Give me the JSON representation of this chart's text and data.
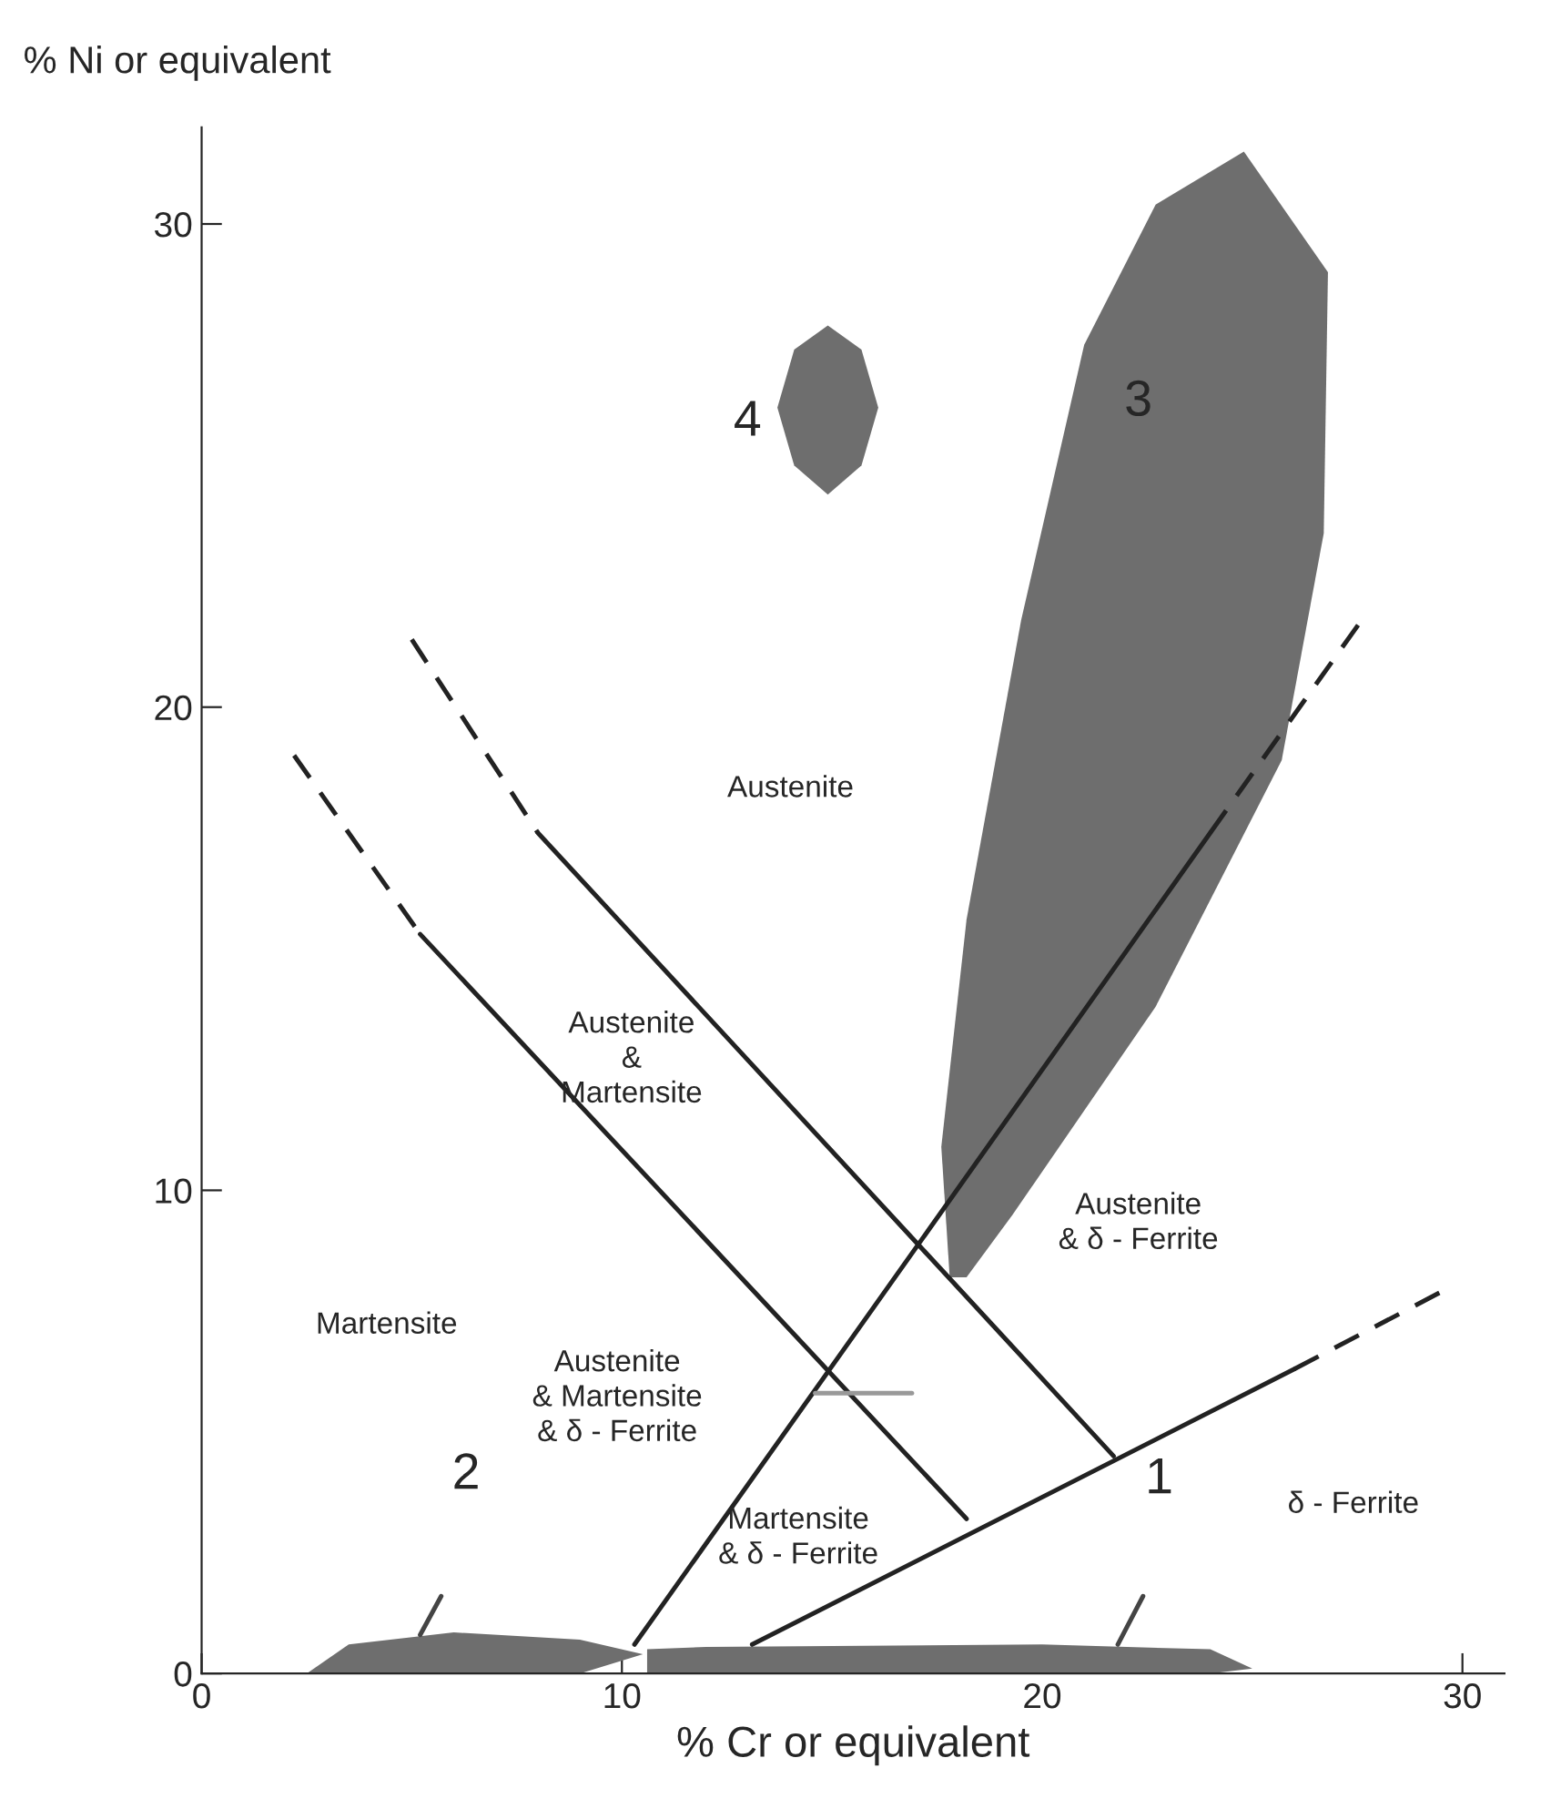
{
  "chart_data": {
    "type": "line",
    "xlabel": "% Cr or equivalent",
    "ylabel": "% Ni or equivalent",
    "xlim": [
      0,
      31
    ],
    "ylim": [
      0,
      32
    ],
    "xticks": [
      0,
      10,
      20,
      30
    ],
    "yticks": [
      0,
      10,
      20,
      30
    ],
    "grid": false,
    "legend": false,
    "marker": "none",
    "series": [
      {
        "type": "line",
        "line_style": "dashed",
        "color": "#222222",
        "x": [
          2.2,
          5.2
        ],
        "values": [
          19.0,
          15.3
        ]
      },
      {
        "type": "line",
        "line_style": "solid",
        "color": "#222222",
        "x": [
          5.2,
          18.2
        ],
        "values": [
          15.3,
          3.2
        ]
      },
      {
        "type": "line",
        "line_style": "dashed",
        "color": "#222222",
        "x": [
          5.0,
          8.0
        ],
        "values": [
          21.4,
          17.4
        ]
      },
      {
        "type": "line",
        "line_style": "solid",
        "color": "#222222",
        "x": [
          8.0,
          21.7
        ],
        "values": [
          17.4,
          4.5
        ]
      },
      {
        "type": "line",
        "line_style": "solid",
        "color": "#222222",
        "x": [
          10.3,
          24.0
        ],
        "values": [
          0.6,
          17.4
        ]
      },
      {
        "type": "line",
        "line_style": "dashed",
        "color": "#222222",
        "x": [
          24.0,
          27.6
        ],
        "values": [
          17.4,
          21.8
        ]
      },
      {
        "type": "line",
        "line_style": "solid",
        "color": "#222222",
        "x": [
          13.1,
          26.0
        ],
        "values": [
          0.6,
          6.3
        ]
      },
      {
        "type": "line",
        "line_style": "dashed",
        "color": "#222222",
        "x": [
          26.0,
          29.5
        ],
        "values": [
          6.3,
          7.9
        ]
      },
      {
        "type": "line",
        "line_style": "solid",
        "color": "#999999",
        "x": [
          14.6,
          16.9
        ],
        "values": [
          5.8,
          5.8
        ]
      },
      {
        "type": "line",
        "line_style": "solid",
        "color": "#444444",
        "x": [
          5.2,
          5.7
        ],
        "values": [
          0.8,
          1.6
        ]
      },
      {
        "type": "line",
        "line_style": "solid",
        "color": "#444444",
        "x": [
          21.8,
          22.4
        ],
        "values": [
          0.6,
          1.6
        ]
      },
      {
        "type": "area",
        "color": "#6e6e6e",
        "x": [
          17.8,
          17.6,
          18.2,
          19.5,
          21.0,
          22.7,
          24.8,
          26.8,
          26.7,
          25.7,
          22.7,
          19.3,
          18.2
        ],
        "values": [
          8.2,
          10.9,
          15.6,
          21.8,
          27.5,
          30.4,
          31.5,
          29.0,
          23.6,
          18.9,
          13.8,
          9.5,
          8.2
        ]
      },
      {
        "type": "area",
        "color": "#6e6e6e",
        "x": [
          14.9,
          14.1,
          13.7,
          14.1,
          14.9,
          15.7,
          16.1,
          15.7
        ],
        "values": [
          27.9,
          27.4,
          26.2,
          25.0,
          24.4,
          25.0,
          26.2,
          27.4
        ]
      },
      {
        "type": "area",
        "color": "#6e6e6e",
        "x": [
          2.5,
          3.5,
          6.0,
          9.0,
          10.5,
          9.0,
          6.0,
          2.5
        ],
        "values": [
          0.0,
          0.6,
          0.85,
          0.7,
          0.4,
          0.0,
          0.0,
          0.0
        ]
      },
      {
        "type": "area",
        "color": "#6e6e6e",
        "x": [
          10.6,
          12.0,
          20.0,
          24.0,
          25.0,
          24.0,
          10.6
        ],
        "values": [
          0.5,
          0.55,
          0.6,
          0.5,
          0.1,
          0.0,
          0.0
        ]
      }
    ],
    "annotations": [
      "Austenite",
      "Austenite\n&\nMartensite",
      "Austenite\n& δ - Ferrite",
      "Martensite",
      "Austenite\n& Martensite\n& δ - Ferrite",
      "Martensite\n& δ - Ferrite",
      "δ - Ferrite",
      "4",
      "3",
      "2",
      "1"
    ]
  }
}
